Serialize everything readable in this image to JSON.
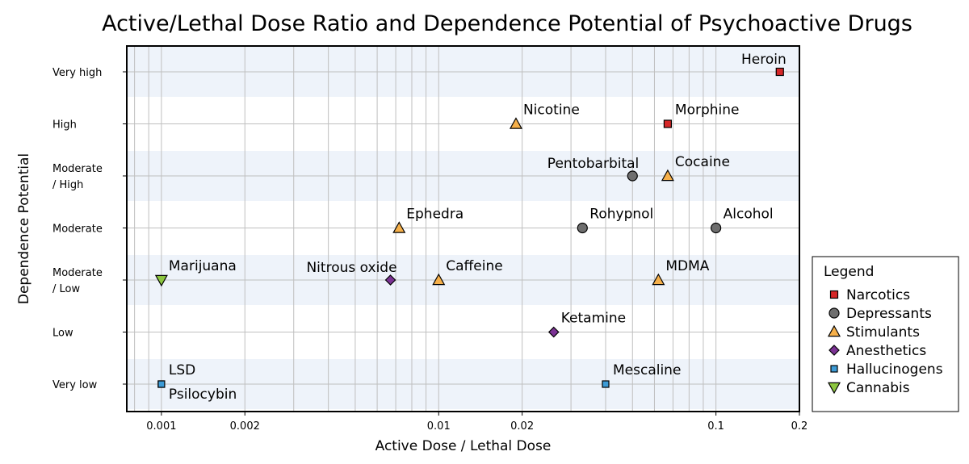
{
  "chart_data": {
    "type": "scatter",
    "title": "Active/Lethal Dose Ratio and Dependence Potential of Psychoactive Drugs",
    "xlabel": "Active Dose / Lethal Dose",
    "ylabel": "Dependence Potential",
    "xscale": "log",
    "xlim": [
      0.00075,
      0.2
    ],
    "x_ticks": [
      {
        "value": 0.001,
        "label": "0.001"
      },
      {
        "value": 0.002,
        "label": "0.002"
      },
      {
        "value": 0.01,
        "label": "0.01"
      },
      {
        "value": 0.02,
        "label": "0.02"
      },
      {
        "value": 0.1,
        "label": "0.1"
      },
      {
        "value": 0.2,
        "label": "0.2"
      }
    ],
    "y_categories": [
      {
        "label": [
          "Very high"
        ],
        "level": 7
      },
      {
        "label": [
          "High"
        ],
        "level": 6
      },
      {
        "label": [
          "Moderate",
          "/ High"
        ],
        "level": 5
      },
      {
        "label": [
          "Moderate"
        ],
        "level": 4
      },
      {
        "label": [
          "Moderate",
          "/ Low"
        ],
        "level": 3
      },
      {
        "label": [
          "Low"
        ],
        "level": 2
      },
      {
        "label": [
          "Very low"
        ],
        "level": 1
      }
    ],
    "legend": {
      "title": "Legend",
      "position": "right",
      "entries": [
        {
          "name": "Narcotics",
          "marker": "square",
          "color": "#d62728"
        },
        {
          "name": "Depressants",
          "marker": "circle",
          "color": "#6e6e6e"
        },
        {
          "name": "Stimulants",
          "marker": "triangle-up",
          "color": "#f6b04a"
        },
        {
          "name": "Anesthetics",
          "marker": "diamond",
          "color": "#7b3294"
        },
        {
          "name": "Hallucinogens",
          "marker": "square-small",
          "color": "#3d9bd6"
        },
        {
          "name": "Cannabis",
          "marker": "triangle-down",
          "color": "#8cc63f"
        }
      ]
    },
    "points": [
      {
        "name": "Heroin",
        "x": 0.17,
        "level": 7,
        "category": "Narcotics",
        "label_pos": "upper-left"
      },
      {
        "name": "Morphine",
        "x": 0.067,
        "level": 6,
        "category": "Narcotics",
        "label_pos": "upper-right"
      },
      {
        "name": "Nicotine",
        "x": 0.019,
        "level": 6,
        "category": "Stimulants",
        "label_pos": "upper-right"
      },
      {
        "name": "Pentobarbital",
        "x": 0.05,
        "level": 5,
        "category": "Depressants",
        "label_pos": "upper-left"
      },
      {
        "name": "Cocaine",
        "x": 0.067,
        "level": 5,
        "category": "Stimulants",
        "label_pos": "upper-right"
      },
      {
        "name": "Ephedra",
        "x": 0.0072,
        "level": 4,
        "category": "Stimulants",
        "label_pos": "upper-right"
      },
      {
        "name": "Rohypnol",
        "x": 0.033,
        "level": 4,
        "category": "Depressants",
        "label_pos": "upper-right"
      },
      {
        "name": "Alcohol",
        "x": 0.1,
        "level": 4,
        "category": "Depressants",
        "label_pos": "upper-right"
      },
      {
        "name": "Marijuana",
        "x": 0.001,
        "level": 3,
        "category": "Cannabis",
        "label_pos": "upper-right"
      },
      {
        "name": "Nitrous oxide",
        "x": 0.0067,
        "level": 3,
        "category": "Anesthetics",
        "label_pos": "upper-left"
      },
      {
        "name": "Caffeine",
        "x": 0.01,
        "level": 3,
        "category": "Stimulants",
        "label_pos": "upper-right"
      },
      {
        "name": "MDMA",
        "x": 0.062,
        "level": 3,
        "category": "Stimulants",
        "label_pos": "upper-right"
      },
      {
        "name": "Ketamine",
        "x": 0.026,
        "level": 2,
        "category": "Anesthetics",
        "label_pos": "upper-right"
      },
      {
        "name": "LSD",
        "x": 0.001,
        "level": 1,
        "category": "Hallucinogens",
        "label_pos": "upper-right"
      },
      {
        "name": "Psilocybin",
        "x": 0.001,
        "level": 1,
        "category": "Hallucinogens",
        "label_pos": "lower-right"
      },
      {
        "name": "Mescaline",
        "x": 0.04,
        "level": 1,
        "category": "Hallucinogens",
        "label_pos": "upper-right"
      }
    ],
    "colors": {
      "band": "#eef3fa",
      "grid": "#bfbfbf",
      "axis": "#000000"
    }
  }
}
